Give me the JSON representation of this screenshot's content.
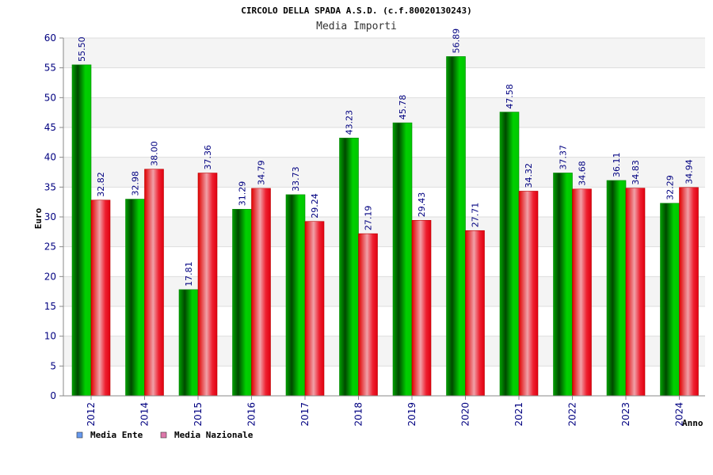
{
  "chart_data": {
    "type": "bar",
    "title": "CIRCOLO DELLA SPADA A.S.D. (c.f.80020130243)",
    "subtitle": "Media Importi",
    "xlabel": "Anno",
    "ylabel": "Euro",
    "ylim": [
      0,
      60
    ],
    "ytick_step": 5,
    "grid": true,
    "legend_position": "bottom-left",
    "categories": [
      "2012",
      "2014",
      "2015",
      "2016",
      "2017",
      "2018",
      "2019",
      "2020",
      "2021",
      "2022",
      "2023",
      "2024"
    ],
    "series": [
      {
        "name": "Media Ente",
        "color": "#00b400",
        "legend_color": "#6699ee",
        "values": [
          55.5,
          32.98,
          17.81,
          31.29,
          33.73,
          43.23,
          45.78,
          56.89,
          47.58,
          37.37,
          36.11,
          32.29
        ],
        "labels": [
          "55.50",
          "32.98",
          "17.81",
          "31.29",
          "33.73",
          "43.23",
          "45.78",
          "56.89",
          "47.58",
          "37.37",
          "36.11",
          "32.29"
        ]
      },
      {
        "name": "Media Nazionale",
        "color": "#e60000",
        "legend_color": "#dd77aa",
        "values": [
          32.82,
          38.0,
          37.36,
          34.79,
          29.24,
          27.19,
          29.43,
          27.71,
          34.32,
          34.68,
          34.83,
          34.94
        ],
        "labels": [
          "32.82",
          "38.00",
          "37.36",
          "34.79",
          "29.24",
          "27.19",
          "29.43",
          "27.71",
          "34.32",
          "34.68",
          "34.83",
          "34.94"
        ]
      }
    ]
  }
}
